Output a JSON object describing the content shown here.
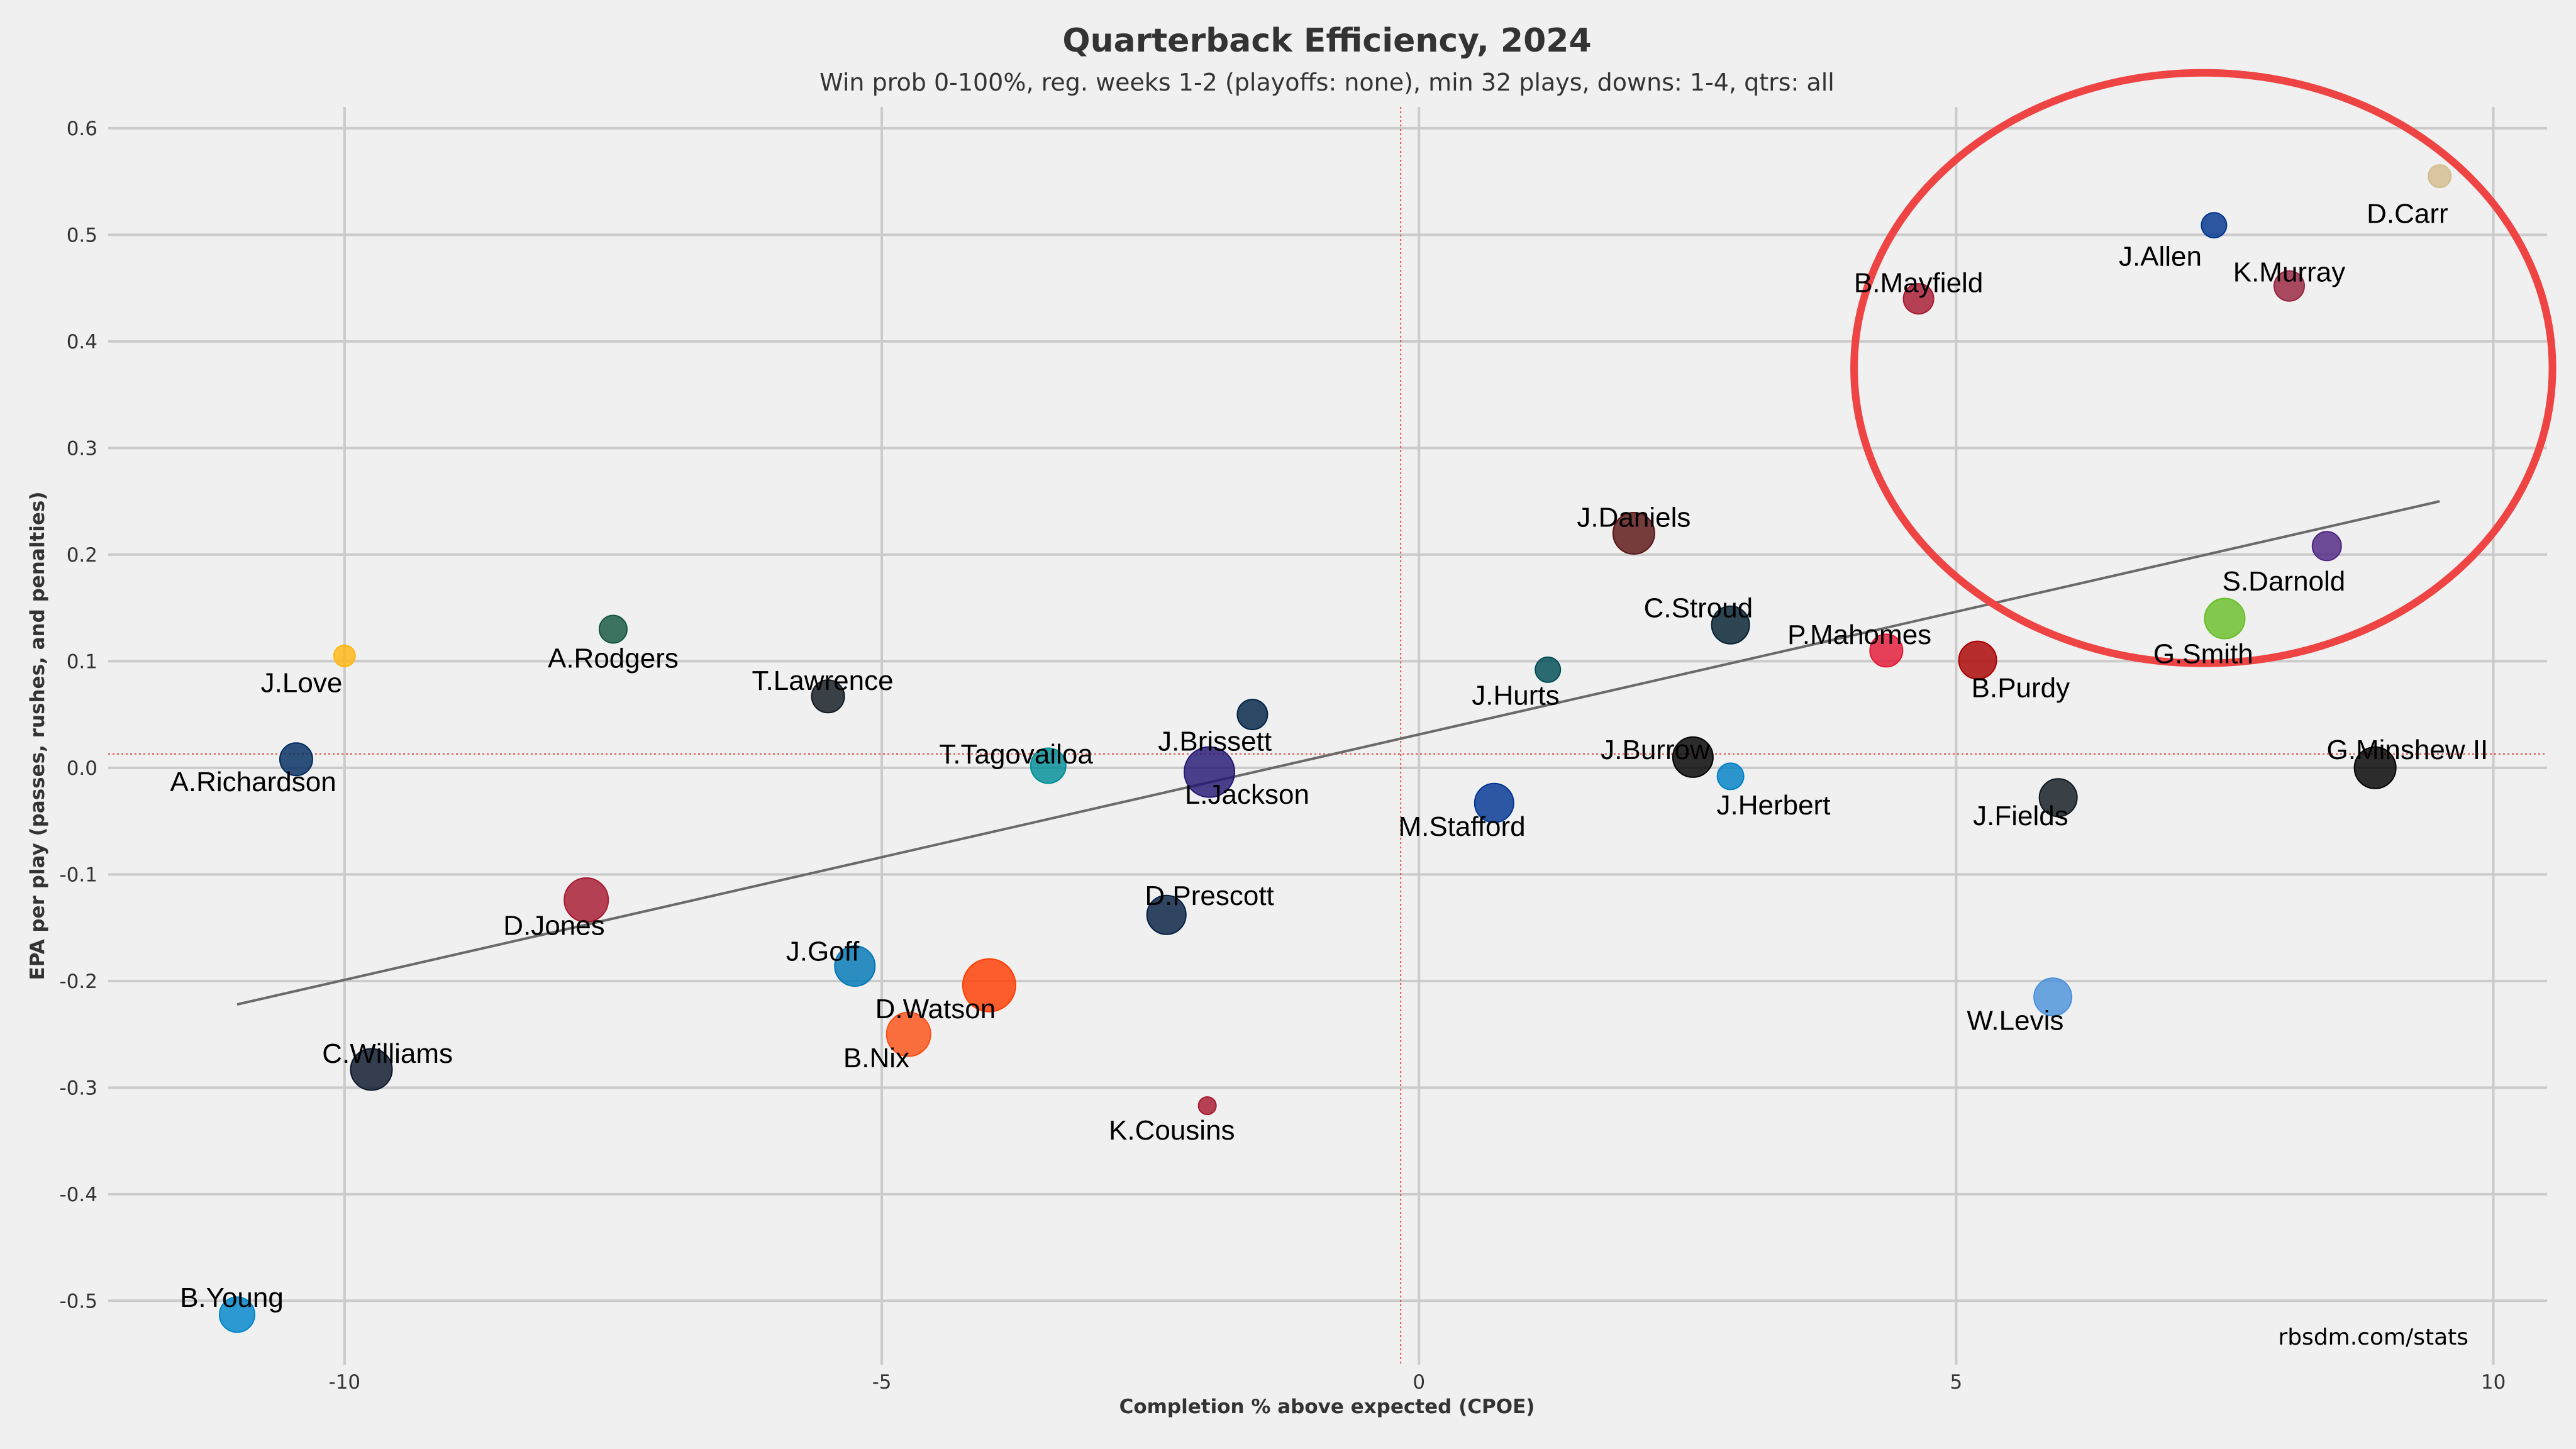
{
  "chart_data": {
    "type": "scatter",
    "title": "Quarterback Efficiency, 2024",
    "subtitle": "Win prob 0-100%, reg. weeks 1-2 (playoffs: none), min 32 plays, downs: 1-4, qtrs: all",
    "xlabel": "Completion % above expected (CPOE)",
    "ylabel": "EPA per play (passes, rushes, and penalties)",
    "source": "rbsdm.com/stats",
    "xlim": [
      -12.2,
      10.5
    ],
    "ylim": [
      -0.56,
      0.62
    ],
    "x_ticks": [
      -10,
      -5,
      0,
      5,
      10
    ],
    "x_tick_labels": [
      "-10",
      "-5",
      "0",
      "5",
      "10"
    ],
    "y_ticks": [
      0.6,
      0.5,
      0.4,
      0.3,
      0.2,
      0.1,
      0.0,
      -0.1,
      -0.2,
      -0.3,
      -0.4,
      -0.5
    ],
    "y_tick_labels": [
      "0.6",
      "0.5",
      "0.4",
      "0.3",
      "0.2",
      "0.1",
      "0.0",
      "-0.1",
      "-0.2",
      "-0.3",
      "-0.4",
      "-0.5"
    ],
    "grid": true,
    "ref_lines": {
      "x": -0.17,
      "y": 0.013,
      "color": "#e03c31"
    },
    "trend_line": {
      "x": [
        -11.0,
        9.5
      ],
      "y": [
        -0.222,
        0.25
      ],
      "color": "#6a6a6a"
    },
    "highlight_ellipse": {
      "cx": 7.3,
      "cy": 0.375,
      "rx": 3.25,
      "ry": 0.277,
      "color": "#ef4444"
    },
    "points": [
      {
        "name": "D.Carr",
        "x": 9.5,
        "y": 0.555,
        "color": "#d3bc8d",
        "r": 18,
        "lx": 9.2,
        "ly": 0.52
      },
      {
        "name": "J.Allen",
        "x": 7.4,
        "y": 0.509,
        "color": "#00338d",
        "r": 20,
        "lx": 6.9,
        "ly": 0.48
      },
      {
        "name": "K.Murray",
        "x": 8.1,
        "y": 0.452,
        "color": "#97233f",
        "r": 24,
        "lx": 8.1,
        "ly": 0.465
      },
      {
        "name": "B.Mayfield",
        "x": 4.65,
        "y": 0.44,
        "color": "#a71930",
        "r": 24,
        "lx": 4.65,
        "ly": 0.455
      },
      {
        "name": "J.Daniels",
        "x": 2.0,
        "y": 0.22,
        "color": "#5a1414",
        "r": 33,
        "lx": 2.0,
        "ly": 0.235
      },
      {
        "name": "S.Darnold",
        "x": 8.45,
        "y": 0.208,
        "color": "#4f2683",
        "r": 23,
        "lx": 8.05,
        "ly": 0.175
      },
      {
        "name": "G.Smith",
        "x": 7.5,
        "y": 0.14,
        "color": "#69be28",
        "r": 32,
        "lx": 7.3,
        "ly": 0.107
      },
      {
        "name": "C.Stroud",
        "x": 2.9,
        "y": 0.134,
        "color": "#03202f",
        "r": 30,
        "lx": 2.6,
        "ly": 0.15
      },
      {
        "name": "P.Mahomes",
        "x": 4.35,
        "y": 0.11,
        "color": "#e31837",
        "r": 26,
        "lx": 4.1,
        "ly": 0.125
      },
      {
        "name": "B.Purdy",
        "x": 5.2,
        "y": 0.101,
        "color": "#aa0000",
        "r": 30,
        "lx": 5.6,
        "ly": 0.075
      },
      {
        "name": "J.Hurts",
        "x": 1.2,
        "y": 0.092,
        "color": "#004c54",
        "r": 20,
        "lx": 0.9,
        "ly": 0.068
      },
      {
        "name": "A.Rodgers",
        "x": -7.5,
        "y": 0.13,
        "color": "#125740",
        "r": 22,
        "lx": -7.5,
        "ly": 0.103
      },
      {
        "name": "J.Love",
        "x": -10.0,
        "y": 0.105,
        "color": "#ffb612",
        "r": 17,
        "lx": -10.4,
        "ly": 0.08
      },
      {
        "name": "T.Lawrence",
        "x": -5.5,
        "y": 0.067,
        "color": "#101820",
        "r": 26,
        "lx": -5.55,
        "ly": 0.082
      },
      {
        "name": "J.Brissett",
        "x": -1.55,
        "y": 0.05,
        "color": "#002244",
        "r": 24,
        "lx": -1.9,
        "ly": 0.025
      },
      {
        "name": "A.Richardson",
        "x": -10.45,
        "y": 0.008,
        "color": "#002c5f",
        "r": 26,
        "lx": -10.85,
        "ly": -0.013
      },
      {
        "name": "T.Tagovailoa",
        "x": -3.45,
        "y": 0.002,
        "color": "#008e97",
        "r": 28,
        "lx": -3.75,
        "ly": 0.013
      },
      {
        "name": "L.Jackson",
        "x": -1.95,
        "y": -0.004,
        "color": "#241773",
        "r": 40,
        "lx": -1.6,
        "ly": -0.025
      },
      {
        "name": "J.Burrow",
        "x": 2.55,
        "y": 0.01,
        "color": "#000000",
        "r": 32,
        "lx": 2.2,
        "ly": 0.017
      },
      {
        "name": "J.Herbert",
        "x": 2.9,
        "y": -0.008,
        "color": "#0080c6",
        "r": 21,
        "lx": 3.3,
        "ly": -0.035
      },
      {
        "name": "G.Minshew II",
        "x": 8.9,
        "y": 0.0,
        "color": "#000000",
        "r": 33,
        "lx": 9.2,
        "ly": 0.017
      },
      {
        "name": "J.Fields",
        "x": 5.95,
        "y": -0.028,
        "color": "#101820",
        "r": 30,
        "lx": 5.6,
        "ly": -0.045
      },
      {
        "name": "M.Stafford",
        "x": 0.7,
        "y": -0.033,
        "color": "#003594",
        "r": 31,
        "lx": 0.4,
        "ly": -0.055
      },
      {
        "name": "D.Prescott",
        "x": -2.35,
        "y": -0.138,
        "color": "#041e42",
        "r": 31,
        "lx": -1.95,
        "ly": -0.12
      },
      {
        "name": "D.Jones",
        "x": -7.75,
        "y": -0.124,
        "color": "#a71930",
        "r": 35,
        "lx": -8.05,
        "ly": -0.148
      },
      {
        "name": "J.Goff",
        "x": -5.25,
        "y": -0.186,
        "color": "#0076b6",
        "r": 32,
        "lx": -5.55,
        "ly": -0.172
      },
      {
        "name": "D.Watson",
        "x": -4.0,
        "y": -0.204,
        "color": "#ff3c00",
        "r": 42,
        "lx": -4.5,
        "ly": -0.226
      },
      {
        "name": "B.Nix",
        "x": -4.75,
        "y": -0.25,
        "color": "#fb4f14",
        "r": 35,
        "lx": -5.05,
        "ly": -0.272
      },
      {
        "name": "W.Levis",
        "x": 5.9,
        "y": -0.215,
        "color": "#4b92db",
        "r": 30,
        "lx": 5.55,
        "ly": -0.237
      },
      {
        "name": "K.Cousins",
        "x": -1.97,
        "y": -0.317,
        "color": "#a71930",
        "r": 14,
        "lx": -2.3,
        "ly": -0.34
      },
      {
        "name": "C.Williams",
        "x": -9.75,
        "y": -0.283,
        "color": "#0b162a",
        "r": 33,
        "lx": -9.6,
        "ly": -0.268
      },
      {
        "name": "B.Young",
        "x": -11.0,
        "y": -0.513,
        "color": "#0085ca",
        "r": 28,
        "lx": -11.05,
        "ly": -0.497
      }
    ]
  }
}
